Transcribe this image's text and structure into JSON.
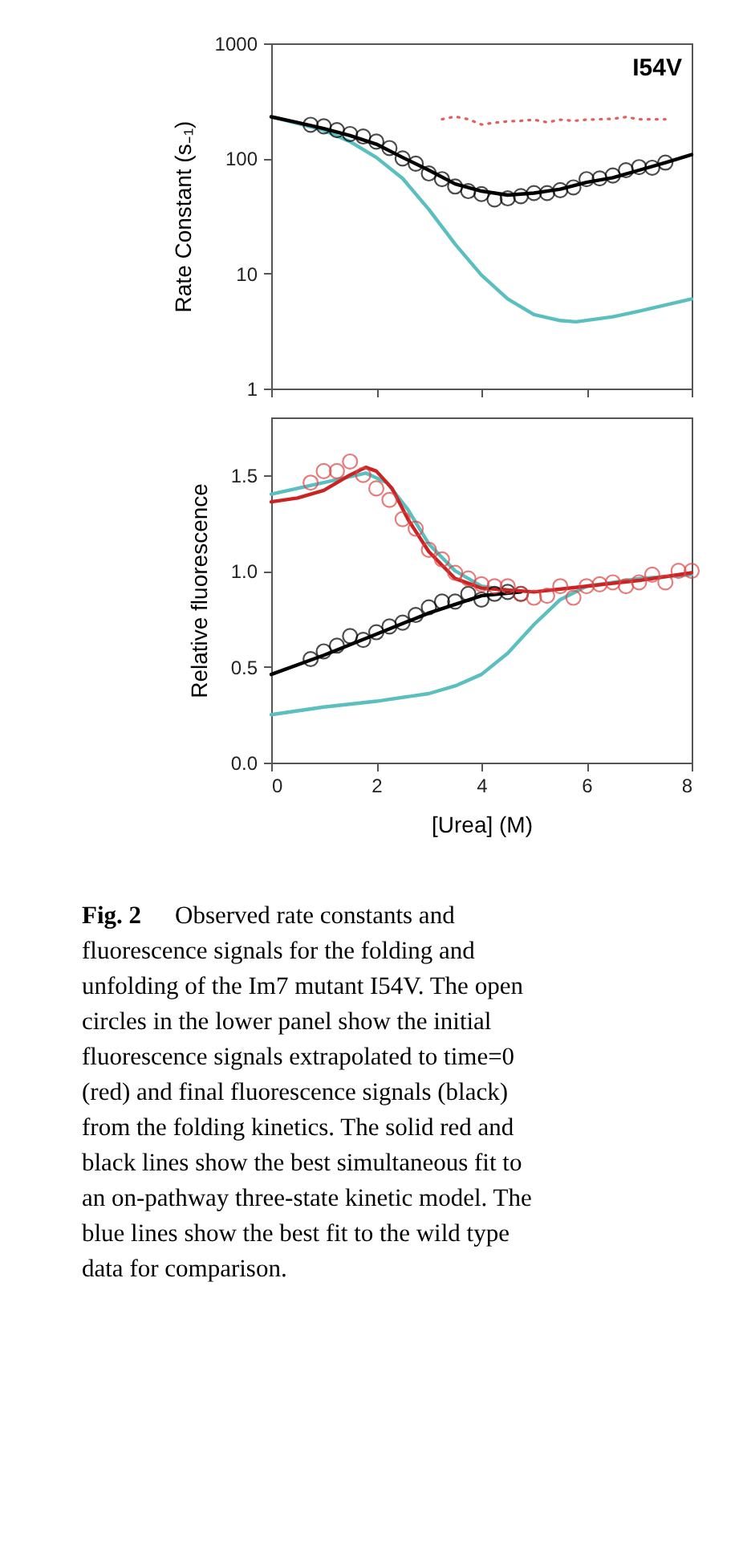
{
  "chart_data": [
    {
      "type": "line",
      "ylabel": "Rate Constant (s₋₁)",
      "log": "y",
      "xlim": [
        0,
        8
      ],
      "xticks": [
        0,
        2,
        4,
        6,
        8
      ],
      "ylim": [
        1,
        1000
      ],
      "yticks": [
        1,
        10,
        100,
        1000
      ],
      "tick_labels": "y",
      "grid": false,
      "annotations": [
        "I54V"
      ],
      "series": [
        {
          "type": "line",
          "color": "#5bbfbf",
          "x": [
            0,
            1,
            1.5,
            2,
            2.5,
            3,
            3.5,
            4,
            4.5,
            5,
            5.5,
            5.8,
            6.5,
            7,
            8
          ],
          "values": [
            230,
            176,
            140,
            102,
            67,
            36,
            18,
            9.7,
            6.0,
            4.4,
            3.9,
            3.8,
            4.2,
            4.7,
            6.0
          ]
        },
        {
          "type": "line",
          "color": "#000000",
          "x": [
            0,
            0.5,
            1,
            1.5,
            2,
            2.5,
            3,
            3.5,
            4,
            4.5,
            5,
            5.5,
            6,
            6.5,
            7,
            7.5,
            8
          ],
          "values": [
            230,
            205,
            182,
            158,
            133,
            102,
            79,
            60,
            52,
            48,
            50,
            54,
            62,
            68,
            79,
            92,
            108
          ]
        },
        {
          "type": "scatter",
          "marker": "circle",
          "color": "#000000",
          "x": [
            0.75,
            1,
            1.25,
            1.5,
            1.75,
            2,
            2.25,
            2.5,
            2.75,
            3,
            3.25,
            3.5,
            3.75,
            4,
            4.25,
            4.5,
            4.75,
            5,
            5.25,
            5.5,
            5.75,
            6,
            6.25,
            6.5,
            6.75,
            7,
            7.25,
            7.5
          ],
          "values": [
            196,
            190,
            176,
            163,
            155,
            140,
            123,
            100,
            90,
            74,
            66,
            57,
            52,
            49,
            44,
            45,
            47,
            50,
            50,
            53,
            56,
            66,
            67,
            71,
            79,
            84,
            83,
            92
          ]
        },
        {
          "type": "line",
          "line_style": "dotted",
          "color": "#e06060",
          "x": [
            3.25,
            3.5,
            3.75,
            4,
            4.25,
            4.5,
            4.75,
            5,
            5.25,
            5.5,
            5.75,
            6,
            6.25,
            6.5,
            6.75,
            7,
            7.25,
            7.5
          ],
          "values": [
            219,
            231,
            219,
            197,
            204,
            210,
            212,
            217,
            206,
            217,
            212,
            217,
            219,
            221,
            229,
            219,
            219,
            219
          ]
        }
      ]
    },
    {
      "type": "line",
      "xlabel": "[Urea] (M)",
      "ylabel": "Relative fluorescence",
      "xlim": [
        0,
        8
      ],
      "xticks": [
        0,
        2,
        4,
        6,
        8
      ],
      "ylim": [
        0,
        1.8
      ],
      "yticks": [
        {
          "value": 0,
          "label": "0.0"
        },
        0.5,
        {
          "value": 1,
          "label": "1.0"
        },
        1.5
      ],
      "grid": false,
      "series": [
        {
          "type": "line",
          "color": "#5bbfbf",
          "x": [
            0,
            1,
            1.8,
            2.2,
            2.6,
            3,
            3.5,
            4,
            4.5
          ],
          "values": [
            1.4,
            1.46,
            1.51,
            1.46,
            1.32,
            1.14,
            1.0,
            0.92,
            0.9
          ]
        },
        {
          "type": "line",
          "color": "#5bbfbf",
          "x": [
            0,
            1,
            2,
            3,
            3.5,
            4,
            4.5,
            5,
            5.5,
            6,
            7,
            8
          ],
          "values": [
            0.25,
            0.29,
            0.32,
            0.36,
            0.4,
            0.46,
            0.57,
            0.72,
            0.85,
            0.92,
            0.96,
            0.98
          ]
        },
        {
          "type": "line",
          "color": "#000000",
          "x": [
            0,
            1,
            2,
            3,
            4,
            4.75
          ],
          "values": [
            0.46,
            0.56,
            0.67,
            0.78,
            0.87,
            0.89
          ]
        },
        {
          "type": "line",
          "color": "#cc2222",
          "x": [
            0,
            0.5,
            1,
            1.5,
            1.8,
            2,
            2.3,
            2.6,
            3,
            3.5,
            4,
            5,
            6,
            7,
            8
          ],
          "values": [
            1.36,
            1.38,
            1.42,
            1.5,
            1.54,
            1.52,
            1.43,
            1.27,
            1.1,
            0.96,
            0.91,
            0.89,
            0.92,
            0.95,
            0.99
          ]
        },
        {
          "type": "scatter",
          "marker": "circle",
          "color": "#000000",
          "x": [
            0.75,
            1,
            1.25,
            1.5,
            1.75,
            2,
            2.25,
            2.5,
            2.75,
            3,
            3.25,
            3.5,
            3.75,
            4,
            4.25,
            4.5,
            4.75
          ],
          "values": [
            0.54,
            0.58,
            0.61,
            0.66,
            0.64,
            0.68,
            0.71,
            0.73,
            0.77,
            0.81,
            0.84,
            0.84,
            0.88,
            0.85,
            0.88,
            0.89,
            0.88
          ]
        },
        {
          "type": "scatter",
          "marker": "circle",
          "color": "#dd4444",
          "x": [
            0.75,
            1,
            1.25,
            1.5,
            1.75,
            2,
            2.25,
            2.5,
            2.75,
            3,
            3.25,
            3.5,
            3.75,
            4,
            4.25,
            4.5,
            4.75,
            5,
            5.25,
            5.5,
            5.75,
            6,
            6.25,
            6.5,
            6.75,
            7,
            7.25,
            7.5,
            7.75,
            8
          ],
          "values": [
            1.46,
            1.52,
            1.52,
            1.57,
            1.5,
            1.43,
            1.37,
            1.27,
            1.22,
            1.11,
            1.06,
            0.99,
            0.96,
            0.93,
            0.92,
            0.92,
            0.88,
            0.86,
            0.87,
            0.92,
            0.86,
            0.92,
            0.93,
            0.94,
            0.92,
            0.94,
            0.98,
            0.94,
            1.0,
            1.0
          ]
        }
      ]
    },
    {
      "type": "other",
      "annotations": [
        "Fig. 2",
        "Observed rate constants and fluorescence signals for the folding and unfolding of the Im7 mutant I54V. The open circles in the lower panel show the initial fluorescence signals extrapolated to time=0 (red) and final fluorescence signals (black) from the folding kinetics.  The solid red and black lines show the best simultaneous fit to an on-pathway three-state kinetic model.  The blue lines show the best fit to the wild type data for comparison."
      ]
    }
  ]
}
